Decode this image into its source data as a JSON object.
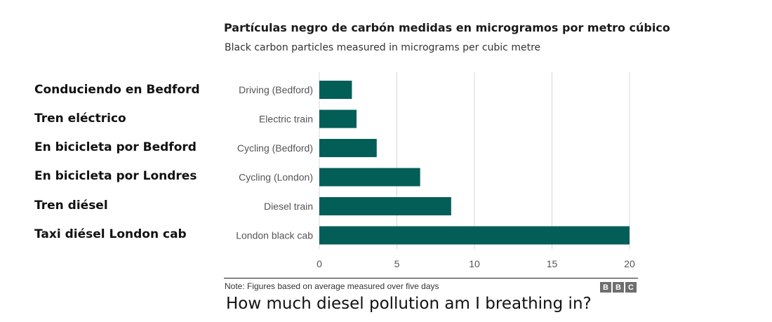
{
  "spanish_labels": [
    "Conduciendo en Bedford",
    "Tren eléctrico",
    "En bicicleta por Bedford",
    "En bicicleta por Londres",
    "Tren diésel",
    "Taxi diésel London cab"
  ],
  "chart_data": {
    "type": "bar",
    "orientation": "horizontal",
    "title": "Partículas negro de carbón medidas en microgramos por metro cúbico",
    "subtitle": "Black carbon particles measured in micrograms per cubic metre",
    "categories": [
      "Driving (Bedford)",
      "Electric train",
      "Cycling (Bedford)",
      "Cycling (London)",
      "Diesel train",
      "London black cab"
    ],
    "values": [
      2.1,
      2.4,
      3.7,
      6.5,
      8.5,
      20
    ],
    "xlim": [
      0,
      20
    ],
    "xticks": [
      0,
      5,
      10,
      15,
      20
    ],
    "grid": true,
    "bar_color": "#035e58"
  },
  "footer": {
    "note": "Note: Figures based on average measured over five days",
    "logo_letters": [
      "B",
      "B",
      "C"
    ]
  },
  "caption": "How much diesel pollution am I breathing in?"
}
